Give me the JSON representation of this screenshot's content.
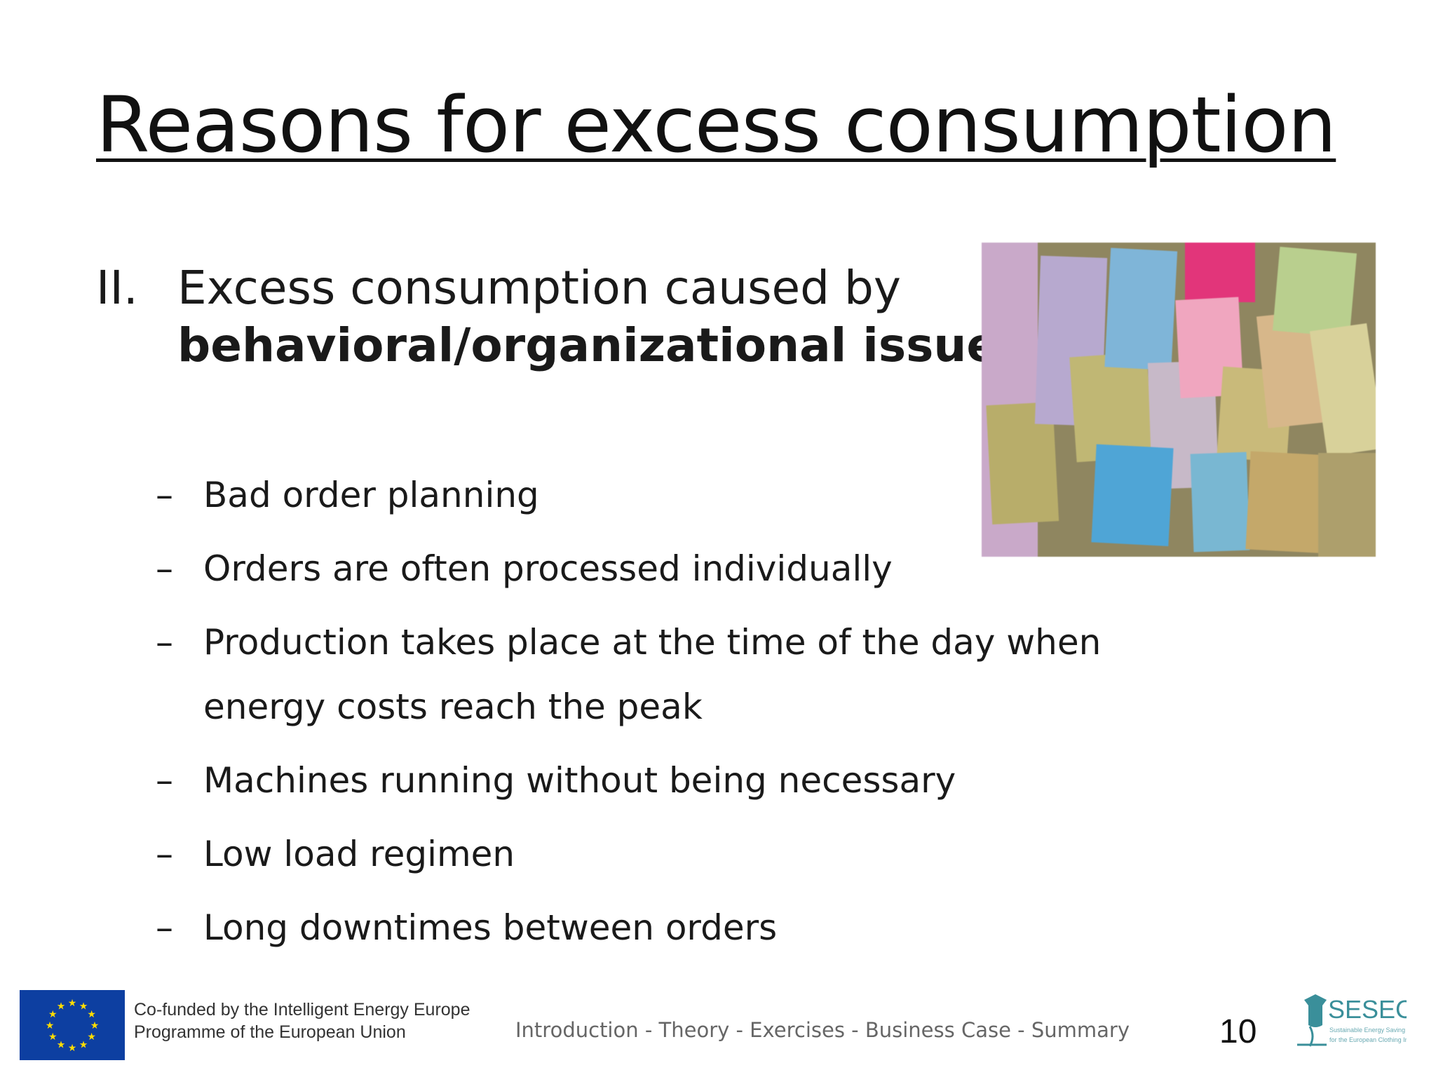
{
  "slide": {
    "title": "Reasons for excess consumption",
    "section": {
      "number": "II.",
      "text_regular": "Excess consumption caused by",
      "text_bold": "behavioral/organizational issues:"
    },
    "bullet_dash": "–",
    "bullets": [
      {
        "text": "Bad order planning"
      },
      {
        "text": "Orders are often processed individually"
      },
      {
        "line1": "Production takes place at the time of the day when",
        "line2": "energy costs reach the peak"
      },
      {
        "text": "Machines running without being necessary"
      },
      {
        "text": "Low load regimen"
      },
      {
        "text": "Long downtimes between orders"
      }
    ],
    "page_number": "10"
  },
  "footer": {
    "cofunded_line1": "Co-funded by the Intelligent Energy Europe",
    "cofunded_line2": "Programme of the European Union",
    "nav": "Introduction - Theory - Exercises - Business Case - Summary",
    "logo_text": "SESEC",
    "logo_sub1": "Sustainable Energy Saving",
    "logo_sub2": "for the European Clothing Industry"
  },
  "colors": {
    "eu_blue": "#0d3fa1",
    "eu_star": "#ffdd00",
    "sesec_teal": "#3a8f9a"
  },
  "icons": {
    "photo": "sticky-notes-photo",
    "flag": "eu-flag-icon",
    "logo": "sesec-logo-icon"
  }
}
